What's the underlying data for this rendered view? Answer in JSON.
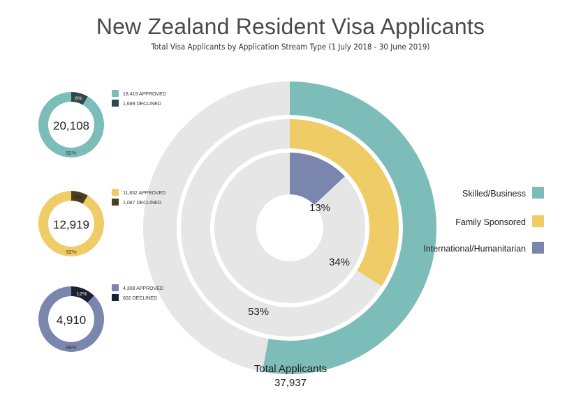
{
  "title": "New Zealand Resident Visa Applicants",
  "subtitle": "Total Visa Applicants by Application Stream Type (1 July 2018 - 30 June 2019)",
  "total": {
    "label": "Total Applicants",
    "value": "37,937"
  },
  "colors": {
    "track": "#e6e6e6",
    "skilled": "#7cbcb9",
    "skilled_dark": "#2e4a48",
    "family": "#efcc66",
    "family_dark": "#4a4020",
    "intl": "#7a86ad",
    "intl_dark": "#1c2130"
  },
  "chart_data": [
    {
      "type": "radial-bar",
      "rings": [
        {
          "name": "Skilled/Business",
          "percent": 53,
          "label": "53%",
          "color": "#7cbcb9"
        },
        {
          "name": "Family Sponsored",
          "percent": 34,
          "label": "34%",
          "color": "#efcc66"
        },
        {
          "name": "International/Humanitarian",
          "percent": 13,
          "label": "13%",
          "color": "#7a86ad"
        }
      ],
      "legend": [
        {
          "label": "Skilled/Business",
          "color": "#7cbcb9"
        },
        {
          "label": "Family Sponsored",
          "color": "#efcc66"
        },
        {
          "label": "International/Humanitarian",
          "color": "#7a86ad"
        }
      ],
      "legend_position": "right"
    },
    {
      "type": "pie",
      "stream": "Skilled/Business",
      "total": "20,108",
      "slices": [
        {
          "legend": "18,419 APPROVED",
          "value": 18419,
          "percent_label": "92%",
          "color": "#7cbcb9"
        },
        {
          "legend": "1,689 DECLINED",
          "value": 1689,
          "percent_label": "8%",
          "color": "#2e4a48"
        }
      ]
    },
    {
      "type": "pie",
      "stream": "Family Sponsored",
      "total": "12,919",
      "slices": [
        {
          "legend": "11,832 APPROVED",
          "value": 11832,
          "percent_label": "92%",
          "color": "#efcc66"
        },
        {
          "legend": "1,087 DECLINED",
          "value": 1087,
          "percent_label": "8%",
          "color": "#4a4020"
        }
      ]
    },
    {
      "type": "pie",
      "stream": "International/Humanitarian",
      "total": "4,910",
      "slices": [
        {
          "legend": "4,308 APPROVED",
          "value": 4308,
          "percent_label": "88%",
          "color": "#7a86ad"
        },
        {
          "legend": "602 DECLINED",
          "value": 602,
          "percent_label": "12%",
          "color": "#1c2130"
        }
      ]
    }
  ]
}
